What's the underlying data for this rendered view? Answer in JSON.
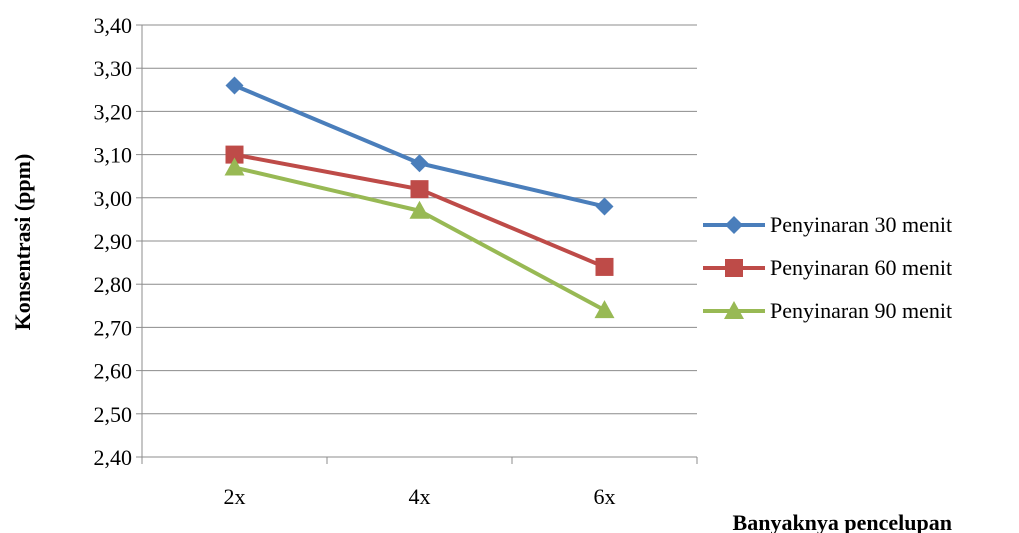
{
  "chart_data": {
    "type": "line",
    "categories": [
      "2x",
      "4x",
      "6x"
    ],
    "series": [
      {
        "name": "Penyinaran 30 menit",
        "values": [
          3.26,
          3.08,
          2.98
        ],
        "color": "#4a7ebb",
        "marker": "diamond"
      },
      {
        "name": "Penyinaran 60 menit",
        "values": [
          3.1,
          3.02,
          2.84
        ],
        "color": "#be4b48",
        "marker": "square"
      },
      {
        "name": "Penyinaran 90 menit",
        "values": [
          3.07,
          2.97,
          2.74
        ],
        "color": "#98b954",
        "marker": "triangle"
      }
    ],
    "yticks": [
      "2,40",
      "2,50",
      "2,60",
      "2,70",
      "2,80",
      "2,90",
      "3,00",
      "3,10",
      "3,20",
      "3,30",
      "3,40"
    ],
    "ylim": [
      2.4,
      3.4
    ],
    "xlabel": "Banyaknya pencelupan",
    "ylabel": "Konsentrasi (ppm)",
    "grid": true,
    "legend": "right"
  }
}
